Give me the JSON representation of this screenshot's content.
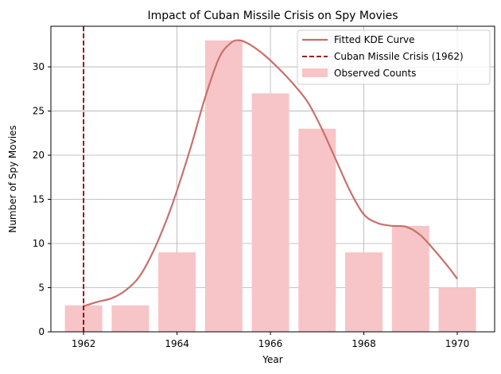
{
  "chart_data": {
    "type": "bar",
    "title": "Impact of Cuban Missile Crisis on Spy Movies",
    "xlabel": "Year",
    "ylabel": "Number of Spy Movies",
    "xlim": [
      1961.3,
      1970.8
    ],
    "ylim": [
      0,
      34.6
    ],
    "xticks": [
      1962,
      1964,
      1966,
      1968,
      1970
    ],
    "yticks": [
      0,
      5,
      10,
      15,
      20,
      25,
      30
    ],
    "grid": true,
    "legend_position": "top-right",
    "bars": {
      "name": "Observed Counts",
      "color": "#f7c5c7",
      "x": [
        1962,
        1963,
        1964,
        1965,
        1966,
        1967,
        1968,
        1969,
        1970
      ],
      "values": [
        3,
        3,
        9,
        33,
        27,
        23,
        9,
        12,
        5
      ]
    },
    "curve": {
      "name": "Fitted KDE Curve",
      "color": "#c8706c",
      "points": [
        [
          1962.0,
          2.9
        ],
        [
          1962.3,
          3.4
        ],
        [
          1962.6,
          3.8
        ],
        [
          1962.9,
          4.7
        ],
        [
          1963.2,
          6.3
        ],
        [
          1963.5,
          9.2
        ],
        [
          1963.8,
          13.0
        ],
        [
          1964.0,
          16.0
        ],
        [
          1964.3,
          21.0
        ],
        [
          1964.6,
          26.5
        ],
        [
          1964.9,
          31.0
        ],
        [
          1965.15,
          32.7
        ],
        [
          1965.35,
          33.0
        ],
        [
          1965.6,
          32.4
        ],
        [
          1965.9,
          31.2
        ],
        [
          1966.2,
          29.7
        ],
        [
          1966.5,
          28.0
        ],
        [
          1966.8,
          26.0
        ],
        [
          1967.1,
          23.0
        ],
        [
          1967.4,
          19.5
        ],
        [
          1967.7,
          16.0
        ],
        [
          1968.0,
          13.3
        ],
        [
          1968.3,
          12.3
        ],
        [
          1968.6,
          12.0
        ],
        [
          1968.9,
          11.9
        ],
        [
          1969.2,
          11.0
        ],
        [
          1969.5,
          9.3
        ],
        [
          1969.8,
          7.4
        ],
        [
          1970.0,
          6.0
        ]
      ]
    },
    "event_line": {
      "name": "Cuban Missile Crisis (1962)",
      "x": 1962,
      "color": "#8b0000"
    }
  }
}
